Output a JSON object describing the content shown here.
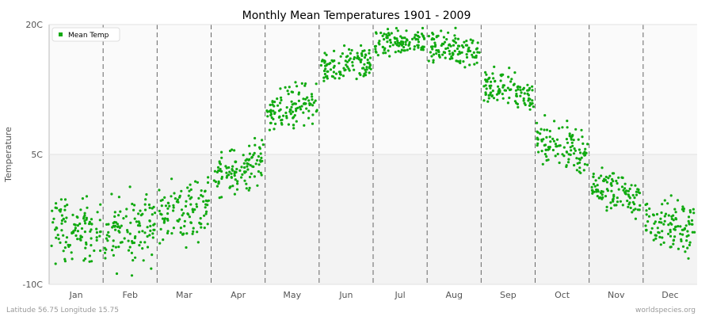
{
  "chart_data": {
    "type": "scatter",
    "title": "Monthly Mean Temperatures 1901 - 2009",
    "ylabel": "Temperature",
    "xlabel": "",
    "categories": [
      "Jan",
      "Feb",
      "Mar",
      "Apr",
      "May",
      "Jun",
      "Jul",
      "Aug",
      "Sep",
      "Oct",
      "Nov",
      "Dec"
    ],
    "y_ticks": [
      {
        "value": -10,
        "label": "-10C"
      },
      {
        "value": 5,
        "label": "5C"
      },
      {
        "value": 20,
        "label": "20C"
      }
    ],
    "ylim": [
      -10,
      20
    ],
    "grid": "vertical dashed month separators; light bands above and below 5C",
    "legend": {
      "label": "Mean Temp",
      "placement": "top-left"
    },
    "series": [
      {
        "name": "Mean Temp",
        "color": "#11aa11",
        "years": [
          1901,
          2009
        ],
        "points_per_month": 109,
        "monthly_range": [
          {
            "month": "Jan",
            "min": -9,
            "max": 1.5
          },
          {
            "month": "Feb",
            "min": -10,
            "max": 2.5
          },
          {
            "month": "Mar",
            "min": -6.5,
            "max": 3.5
          },
          {
            "month": "Apr",
            "min": -0.5,
            "max": 7
          },
          {
            "month": "May",
            "min": 7,
            "max": 14
          },
          {
            "month": "Jun",
            "min": 12.5,
            "max": 18
          },
          {
            "month": "Jul",
            "min": 15.5,
            "max": 20.5
          },
          {
            "month": "Aug",
            "min": 14.5,
            "max": 20
          },
          {
            "month": "Sep",
            "min": 9.5,
            "max": 15.5
          },
          {
            "month": "Oct",
            "min": 2,
            "max": 10
          },
          {
            "month": "Nov",
            "min": -3,
            "max": 4
          },
          {
            "month": "Dec",
            "min": -8,
            "max": 1.5
          }
        ]
      }
    ]
  },
  "footer": {
    "left": "Latitude 56.75 Longitude 15.75",
    "right": "worldspecies.org"
  }
}
